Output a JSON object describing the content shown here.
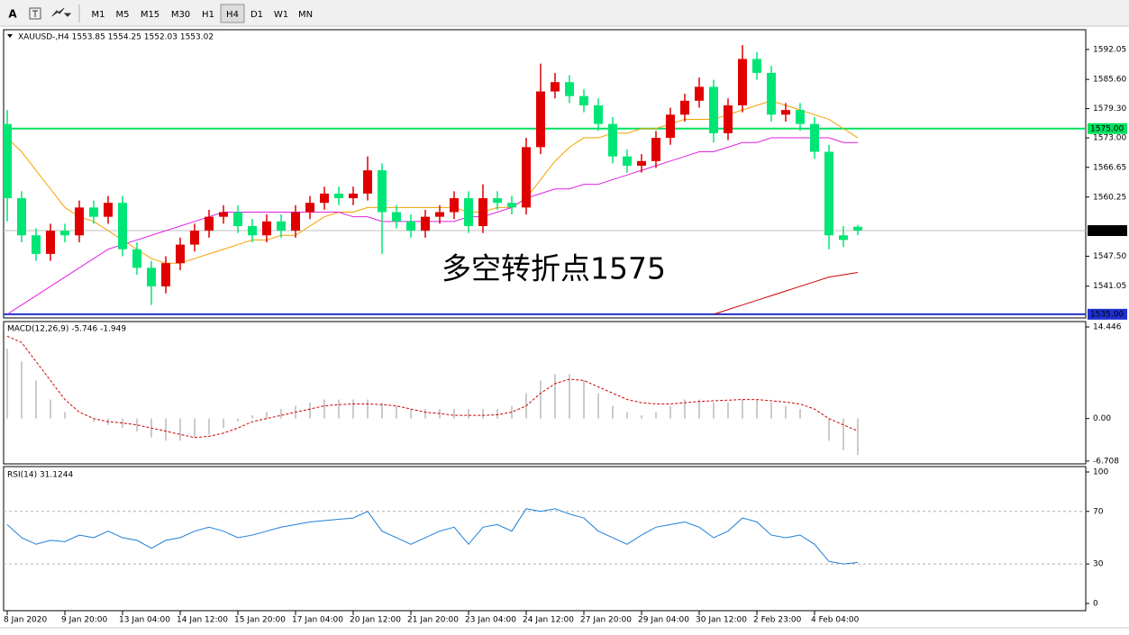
{
  "toolbar": {
    "text_tool": "A",
    "buttons": [
      "M1",
      "M5",
      "M15",
      "M30",
      "H1",
      "H4",
      "D1",
      "W1",
      "MN"
    ],
    "active_index": 5
  },
  "chart_data": [
    {
      "type": "candlestick",
      "title": "XAUUSD-,H4 1553.85 1554.25 1552.03 1553.02",
      "annotation": {
        "text": "多空转折点1575",
        "color": "#e00000"
      },
      "categories": [
        "8 Jan 2020",
        null,
        null,
        null,
        "9 Jan 20:00",
        null,
        null,
        null,
        "13 Jan 04:00",
        null,
        null,
        null,
        "14 Jan 12:00",
        null,
        null,
        null,
        "15 Jan 20:00",
        null,
        null,
        null,
        "17 Jan 04:00",
        null,
        null,
        null,
        "20 Jan 12:00",
        null,
        null,
        null,
        "21 Jan 20:00",
        null,
        null,
        null,
        "23 Jan 04:00",
        null,
        null,
        null,
        "24 Jan 12:00",
        null,
        null,
        null,
        "27 Jan 20:00",
        null,
        null,
        null,
        "29 Jan 04:00",
        null,
        null,
        null,
        "30 Jan 12:00",
        null,
        null,
        null,
        "2 Feb 23:00",
        null,
        null,
        null,
        "4 Feb 04:00",
        null,
        null,
        null
      ],
      "up_color": "#e00000",
      "down_color": "#00e676",
      "ohlc": {
        "open": [
          1576,
          1560,
          1552,
          1548,
          1553,
          1552,
          1558,
          1556,
          1559,
          1549,
          1545,
          1541,
          1546,
          1550,
          1553,
          1556,
          1557,
          1554,
          1552,
          1555,
          1553,
          1557,
          1559,
          1561,
          1560,
          1561,
          1566,
          1557,
          1555,
          1553,
          1556,
          1557,
          1560,
          1554,
          1560,
          1559,
          1558,
          1571,
          1583,
          1585,
          1582,
          1580,
          1576,
          1569,
          1567,
          1568,
          1573,
          1578,
          1581,
          1584,
          1574,
          1580,
          1590,
          1587,
          1578,
          1579,
          1576,
          1570,
          1552,
          1553.85
        ],
        "high": [
          1579,
          1561.5,
          1553.5,
          1554.5,
          1554.5,
          1559.5,
          1559.5,
          1560.5,
          1560.5,
          1550.5,
          1546.5,
          1547.5,
          1551.5,
          1554.5,
          1557.5,
          1558.5,
          1558.5,
          1555.5,
          1556.5,
          1556.5,
          1558.5,
          1560.5,
          1562.5,
          1562.5,
          1562.5,
          1569,
          1567.5,
          1558.5,
          1556.5,
          1557.5,
          1558.5,
          1561.5,
          1561.5,
          1563,
          1561.5,
          1560.5,
          1573,
          1589,
          1587,
          1586.5,
          1583.5,
          1581.5,
          1577.5,
          1570.5,
          1569.5,
          1574.5,
          1579.5,
          1582.5,
          1586,
          1585.5,
          1581.5,
          1593,
          1591.5,
          1588.5,
          1580.5,
          1580.5,
          1577.5,
          1571.5,
          1554,
          1554.25
        ],
        "low": [
          1555,
          1550.5,
          1546.5,
          1546.5,
          1550.5,
          1550.5,
          1554.5,
          1554.5,
          1547.5,
          1543.5,
          1537,
          1539.5,
          1544.5,
          1548.5,
          1551.5,
          1554.5,
          1552.5,
          1550.5,
          1550.5,
          1551.5,
          1551.5,
          1555.5,
          1557.5,
          1558.5,
          1558.5,
          1559.5,
          1548,
          1553.5,
          1551.5,
          1551.5,
          1554.5,
          1555.5,
          1552.5,
          1552.5,
          1557.5,
          1556.5,
          1556.5,
          1569.5,
          1581.5,
          1580.5,
          1578.5,
          1574.5,
          1567.5,
          1565.5,
          1565.5,
          1566.5,
          1571.5,
          1576.5,
          1579.5,
          1572,
          1572.5,
          1578.5,
          1585.5,
          1576.5,
          1576.5,
          1574.5,
          1568.5,
          1549,
          1549.5,
          1552.03
        ],
        "close": [
          1560,
          1552,
          1548,
          1553,
          1552,
          1558,
          1556,
          1559,
          1549,
          1545,
          1541,
          1546,
          1550,
          1553,
          1556,
          1557,
          1554,
          1552,
          1555,
          1553,
          1557,
          1559,
          1561,
          1560,
          1561,
          1566,
          1557,
          1555,
          1553,
          1556,
          1557,
          1560,
          1554,
          1560,
          1559,
          1558,
          1571,
          1583,
          1585,
          1582,
          1580,
          1576,
          1569,
          1567,
          1568,
          1573,
          1578,
          1581,
          1584,
          1574,
          1580,
          1590,
          1587,
          1578,
          1579,
          1576,
          1570,
          1552,
          1551,
          1553.02
        ]
      },
      "overlays": [
        {
          "color": "#f5a000",
          "values": [
            1573,
            1570,
            1566,
            1562,
            1558,
            1556,
            1555,
            1553,
            1551,
            1549,
            1547,
            1546,
            1546,
            1547,
            1548,
            1549,
            1550,
            1551,
            1551,
            1552,
            1552,
            1554,
            1556,
            1557,
            1557,
            1558,
            1558,
            1558,
            1558,
            1558,
            1558,
            1558,
            1557,
            1557,
            1558,
            1558,
            1560,
            1564,
            1568,
            1571,
            1573,
            1573,
            1574,
            1574,
            1575,
            1575,
            1576,
            1577,
            1577,
            1577,
            1578,
            1579,
            1580,
            1581,
            1580,
            1579,
            1578,
            1577,
            1575,
            1573
          ]
        },
        {
          "color": "#e020e0",
          "values": [
            1535,
            1537,
            1539,
            1541,
            1543,
            1545,
            1547,
            1549,
            1550,
            1551,
            1552,
            1553,
            1554,
            1555,
            1556,
            1557,
            1557,
            1557,
            1557,
            1557,
            1557,
            1557,
            1557,
            1557,
            1556,
            1556,
            1555,
            1555,
            1555,
            1555,
            1555,
            1555,
            1556,
            1556,
            1557,
            1558,
            1560,
            1561,
            1562,
            1562,
            1563,
            1563,
            1564,
            1565,
            1566,
            1567,
            1568,
            1569,
            1570,
            1570,
            1571,
            1572,
            1572,
            1573,
            1573,
            1573,
            1573,
            1573,
            1572,
            1572
          ]
        },
        {
          "color": "#d00000",
          "values": [
            null,
            null,
            null,
            null,
            null,
            null,
            null,
            null,
            null,
            null,
            null,
            null,
            null,
            null,
            null,
            null,
            null,
            null,
            null,
            null,
            null,
            null,
            null,
            null,
            null,
            null,
            null,
            null,
            null,
            null,
            null,
            null,
            null,
            null,
            null,
            null,
            null,
            null,
            null,
            null,
            null,
            null,
            null,
            null,
            null,
            null,
            null,
            null,
            null,
            1535,
            1536,
            1537,
            1538,
            1539,
            1540,
            1541,
            1542,
            1543,
            1543.5,
            1544
          ]
        }
      ],
      "hlines": [
        {
          "value": 1575,
          "label": "1575.00",
          "color": "#00e060",
          "box": "#00e060",
          "text_color": "#ffffff"
        },
        {
          "value": 1535,
          "label": "1535.00",
          "color": "#2030d0",
          "box": "#2030d0",
          "text_color": "#ffffff"
        },
        {
          "value": 1553.02,
          "label": "1553.02",
          "color": "#c0c0c0",
          "box": "#000000",
          "text_color": "#ffffff"
        }
      ],
      "ylim": [
        1534.2,
        1596.3
      ],
      "yticks": [
        1592.05,
        {
          "value": 1585.6,
          "label": "1585.60"
        },
        {
          "value": 1579.3,
          "label": "1579.30"
        },
        {
          "value": 1573,
          "label": "1573.00"
        },
        1566.65,
        1560.25,
        {
          "value": 1547.5,
          "label": "1547.50"
        },
        1541.05
      ]
    },
    {
      "type": "macd",
      "title": "MACD(12,26,9) -5.746 -1.949",
      "histogram": {
        "color": "#a8a8a8",
        "values": [
          11,
          9,
          6,
          3,
          1,
          0,
          -0.5,
          -1,
          -1.5,
          -2,
          -3,
          -3.5,
          -3.5,
          -3,
          -2.5,
          -1.5,
          -0.5,
          0.5,
          1,
          1.5,
          2,
          2.5,
          3,
          3,
          3,
          3,
          2.5,
          2,
          1.5,
          1.5,
          1.5,
          1.5,
          1.5,
          1.5,
          1.5,
          2,
          4,
          6,
          7,
          7,
          6,
          4,
          2,
          1,
          0.5,
          1,
          2,
          3,
          3,
          2.5,
          2.5,
          3,
          3,
          2.5,
          2,
          1.5,
          0,
          -3.5,
          -5,
          -5.746
        ]
      },
      "signal": {
        "color": "#d00000",
        "values": [
          13,
          12,
          9,
          6,
          3,
          1,
          0,
          -0.5,
          -0.7,
          -1,
          -1.5,
          -2,
          -2.5,
          -3,
          -2.8,
          -2.3,
          -1.5,
          -0.5,
          0,
          0.5,
          1,
          1.5,
          2,
          2.2,
          2.3,
          2.3,
          2.2,
          2,
          1.5,
          1,
          0.8,
          0.5,
          0.5,
          0.5,
          0.6,
          1,
          2,
          4,
          5.5,
          6.2,
          6,
          5,
          4,
          3,
          2.5,
          2.3,
          2.3,
          2.5,
          2.7,
          2.8,
          2.9,
          3,
          3,
          2.8,
          2.6,
          2.3,
          1.5,
          0,
          -1,
          -1.949
        ]
      },
      "ylim": [
        -7.15,
        15.3
      ],
      "yticks": [
        14.446,
        {
          "value": 0,
          "label": "0.00"
        },
        -6.708
      ]
    },
    {
      "type": "line",
      "title": "RSI(14) 31.1244",
      "color": "#1e7fd8",
      "values": [
        60,
        50,
        45,
        48,
        47,
        52,
        50,
        55,
        50,
        48,
        42,
        48,
        50,
        55,
        58,
        55,
        50,
        52,
        55,
        58,
        60,
        62,
        63,
        64,
        65,
        70,
        55,
        50,
        45,
        50,
        55,
        58,
        45,
        58,
        60,
        55,
        72,
        70,
        72,
        68,
        65,
        55,
        50,
        45,
        52,
        58,
        60,
        62,
        58,
        50,
        55,
        65,
        62,
        52,
        50,
        52,
        45,
        32,
        30,
        31.1244
      ],
      "levels": [
        70,
        30
      ],
      "ylim": [
        -5.5,
        104.1
      ],
      "yticks": [
        100,
        70,
        30,
        0
      ]
    }
  ]
}
